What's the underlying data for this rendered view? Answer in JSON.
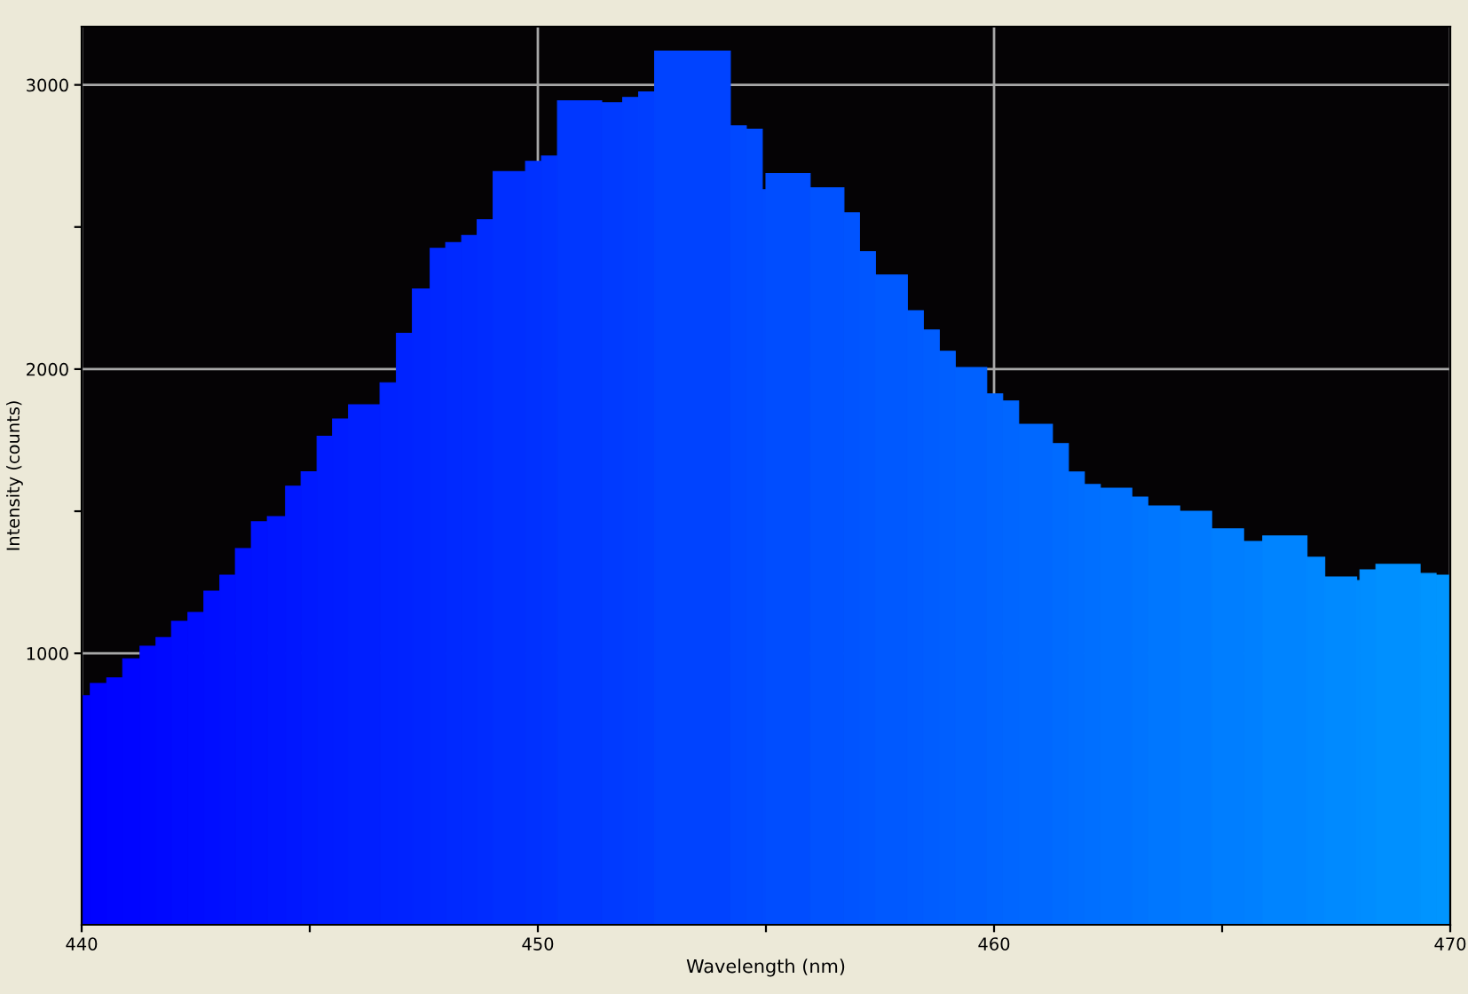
{
  "chart_data": {
    "type": "histogram",
    "xlabel": "Wavelength (nm)",
    "ylabel": "Intensity (counts)",
    "bins": [
      440.0,
      440.19,
      440.55,
      440.9,
      441.28,
      441.63,
      441.97,
      442.33,
      442.68,
      443.03,
      443.37,
      443.72,
      444.07,
      444.47,
      444.81,
      445.16,
      445.5,
      445.85,
      446.54,
      446.9,
      447.25,
      447.64,
      447.98,
      448.33,
      448.67,
      449.02,
      449.73,
      450.08,
      450.43,
      451.4,
      451.86,
      452.21,
      452.56,
      454.22,
      454.57,
      454.92,
      455.0,
      455.97,
      456.71,
      457.05,
      457.4,
      458.1,
      458.45,
      458.8,
      459.15,
      459.84,
      460.19,
      460.54,
      461.28,
      461.63,
      461.98,
      462.33,
      463.02,
      463.37,
      464.07,
      464.77,
      465.47,
      465.89,
      466.86,
      467.25,
      467.95,
      468.02,
      468.37,
      469.34,
      469.69,
      470.0
    ],
    "values": [
      851,
      894,
      914,
      981,
      1025,
      1056,
      1113,
      1144,
      1219,
      1275,
      1369,
      1463,
      1481,
      1588,
      1639,
      1764,
      1825,
      1875,
      1952,
      2126,
      2282,
      2425,
      2445,
      2470,
      2526,
      2695,
      2731,
      2750,
      2944,
      2937,
      2956,
      2975,
      3119,
      2856,
      2844,
      2631,
      2688,
      2638,
      2550,
      2413,
      2331,
      2206,
      2138,
      2063,
      2006,
      1913,
      1888,
      1806,
      1738,
      1638,
      1594,
      1581,
      1550,
      1519,
      1500,
      1438,
      1394,
      1413,
      1338,
      1269,
      1256,
      1294,
      1313,
      1281,
      1275
    ],
    "colors": [
      "#0001ff",
      "#0002ff",
      "#0004ff",
      "#0005ff",
      "#0007ff",
      "#0009ff",
      "#000bff",
      "#000cff",
      "#000eff",
      "#0010ff",
      "#0012ff",
      "#0013ff",
      "#0015ff",
      "#0017ff",
      "#0019ff",
      "#001bff",
      "#001cff",
      "#001fff",
      "#0022ff",
      "#0023ff",
      "#0025ff",
      "#0027ff",
      "#0029ff",
      "#002aff",
      "#002cff",
      "#002fff",
      "#0031ff",
      "#0033ff",
      "#0037ff",
      "#003aff",
      "#003cff",
      "#003eff",
      "#0043ff",
      "#0048ff",
      "#004aff",
      "#004bff",
      "#004dff",
      "#0052ff",
      "#0054ff",
      "#0056ff",
      "#0059ff",
      "#005bff",
      "#005dff",
      "#005fff",
      "#0061ff",
      "#0064ff",
      "#0066ff",
      "#0068ff",
      "#006bff",
      "#006dff",
      "#006fff",
      "#0071ff",
      "#0074ff",
      "#0077ff",
      "#007aff",
      "#007eff",
      "#0080ff",
      "#0084ff",
      "#0087ff",
      "#008aff",
      "#008cff",
      "#008dff",
      "#0090ff",
      "#0094ff",
      "#0095ff"
    ],
    "xlim": [
      440,
      470
    ],
    "xticks": [
      440,
      {
        "value": 445,
        "label": null
      },
      450,
      {
        "value": 455,
        "label": null
      },
      460,
      {
        "value": 465,
        "label": null
      },
      470
    ],
    "ylim": [
      45,
      3205
    ],
    "yticks": [
      1000,
      {
        "value": 1500,
        "label": null
      },
      2000,
      {
        "value": 2500,
        "label": null
      },
      3000
    ],
    "grid": true
  }
}
